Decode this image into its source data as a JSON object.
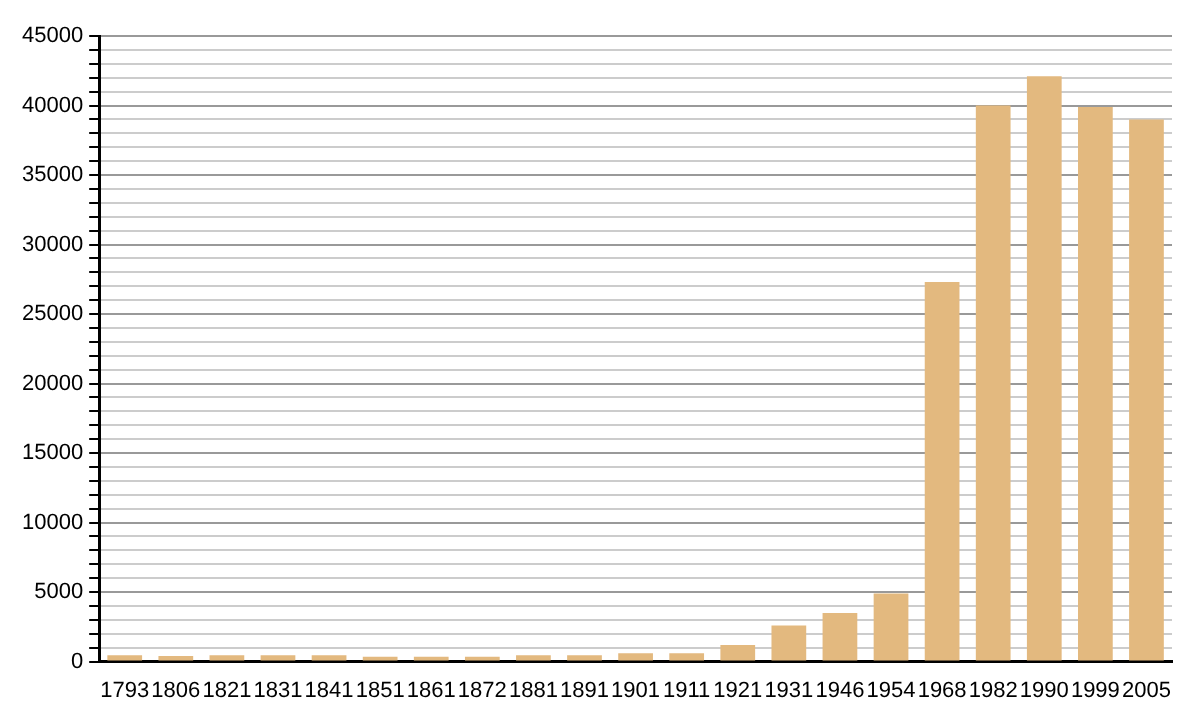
{
  "chart_data": {
    "type": "bar",
    "categories": [
      "1793",
      "1806",
      "1821",
      "1831",
      "1841",
      "1851",
      "1861",
      "1872",
      "1881",
      "1891",
      "1901",
      "1911",
      "1921",
      "1931",
      "1946",
      "1954",
      "1968",
      "1982",
      "1990",
      "1999",
      "2005"
    ],
    "values": [
      450,
      400,
      450,
      450,
      450,
      350,
      350,
      350,
      450,
      450,
      600,
      600,
      1200,
      2600,
      3500,
      4900,
      27300,
      40000,
      42100,
      39900,
      39000
    ],
    "color": "#e3b97f",
    "ylim": [
      0,
      45000
    ],
    "yticks": [
      0,
      {
        "value": 1000,
        "label": null
      },
      {
        "value": 2000,
        "label": null
      },
      {
        "value": 3000,
        "label": null
      },
      {
        "value": 4000,
        "label": null
      },
      5000,
      {
        "value": 6000,
        "label": null
      },
      {
        "value": 7000,
        "label": null
      },
      {
        "value": 8000,
        "label": null
      },
      {
        "value": 9000,
        "label": null
      },
      10000,
      {
        "value": 11000,
        "label": null
      },
      {
        "value": 12000,
        "label": null
      },
      {
        "value": 13000,
        "label": null
      },
      {
        "value": 14000,
        "label": null
      },
      15000,
      {
        "value": 16000,
        "label": null
      },
      {
        "value": 17000,
        "label": null
      },
      {
        "value": 18000,
        "label": null
      },
      {
        "value": 19000,
        "label": null
      },
      20000,
      {
        "value": 21000,
        "label": null
      },
      {
        "value": 22000,
        "label": null
      },
      {
        "value": 23000,
        "label": null
      },
      {
        "value": 24000,
        "label": null
      },
      25000,
      {
        "value": 26000,
        "label": null
      },
      {
        "value": 27000,
        "label": null
      },
      {
        "value": 28000,
        "label": null
      },
      {
        "value": 29000,
        "label": null
      },
      30000,
      {
        "value": 31000,
        "label": null
      },
      {
        "value": 32000,
        "label": null
      },
      {
        "value": 33000,
        "label": null
      },
      {
        "value": 34000,
        "label": null
      },
      35000,
      {
        "value": 36000,
        "label": null
      },
      {
        "value": 37000,
        "label": null
      },
      {
        "value": 38000,
        "label": null
      },
      {
        "value": 39000,
        "label": null
      },
      40000,
      {
        "value": 41000,
        "label": null
      },
      {
        "value": 42000,
        "label": null
      },
      {
        "value": 43000,
        "label": null
      },
      {
        "value": 44000,
        "label": null
      },
      45000
    ],
    "grid": true
  }
}
